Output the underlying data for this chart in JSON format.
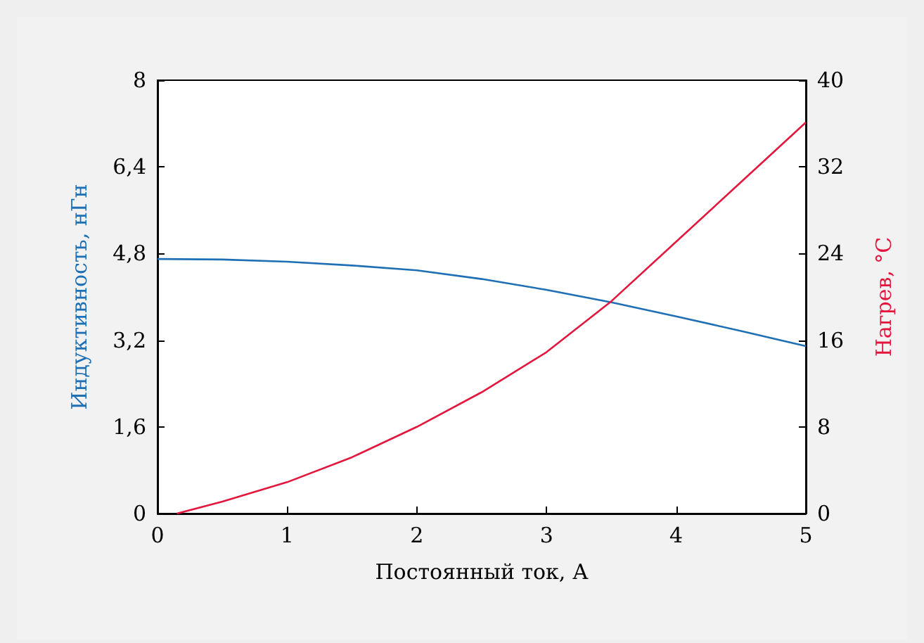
{
  "chart_data": {
    "type": "line",
    "xlabel": "Постоянный ток, А",
    "ylabel": "Индуктивность, нГн",
    "y2label": "Нагрев, °C",
    "xlim": [
      0,
      5
    ],
    "xticks": [
      0,
      1,
      2,
      3,
      4,
      5
    ],
    "ylim": [
      0,
      8
    ],
    "yticks": [
      0,
      {
        "value": 1.6,
        "label": "1,6"
      },
      {
        "value": 3.2,
        "label": "3,2"
      },
      {
        "value": 4.8,
        "label": "4,8"
      },
      {
        "value": 6.4,
        "label": "6,4"
      },
      8
    ],
    "y2lim": [
      0,
      40
    ],
    "y2ticks": [
      0,
      8,
      16,
      24,
      32,
      40
    ],
    "marker": "none",
    "line_style": "solid",
    "series": [
      {
        "color": "#1f6fb4",
        "x": [
          0,
          0.5,
          1,
          1.5,
          2,
          2.5,
          3,
          3.5,
          4,
          4.5,
          5
        ],
        "values": [
          4.7,
          4.69,
          4.65,
          4.58,
          4.49,
          4.33,
          4.13,
          3.9,
          3.64,
          3.37,
          3.09
        ]
      },
      {
        "color": "#e3173e",
        "axis": "y2",
        "x": [
          0.15,
          0.5,
          1,
          1.5,
          2,
          2.5,
          3,
          3.5,
          4,
          4.5,
          5
        ],
        "values": [
          0,
          1.1,
          2.9,
          5.2,
          8.0,
          11.2,
          14.9,
          19.6,
          25.1,
          30.6,
          36.1
        ]
      }
    ]
  }
}
